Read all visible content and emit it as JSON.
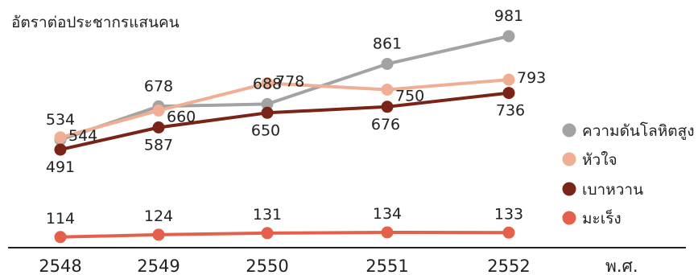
{
  "chart_data": {
    "type": "line",
    "ylabel": "อัตราต่อประชากรแสนคน",
    "xlabel": "พ.ศ.",
    "categories": [
      "2548",
      "2549",
      "2550",
      "2551",
      "2552"
    ],
    "ylim": [
      0,
      1000
    ],
    "legend_position": "right",
    "grid": false,
    "series": [
      {
        "name": "ความดันโลหิตสูง",
        "color": "#a3a3a3",
        "values": [
          534,
          678,
          688,
          861,
          981
        ]
      },
      {
        "name": "หัวใจ",
        "color": "#f0ae94",
        "values": [
          544,
          660,
          778,
          750,
          793
        ]
      },
      {
        "name": "เบาหวาน",
        "color": "#7a2418",
        "values": [
          491,
          587,
          650,
          676,
          736
        ]
      },
      {
        "name": "มะเร็ง",
        "color": "#e4604a",
        "values": [
          114,
          124,
          131,
          134,
          133
        ]
      }
    ]
  }
}
